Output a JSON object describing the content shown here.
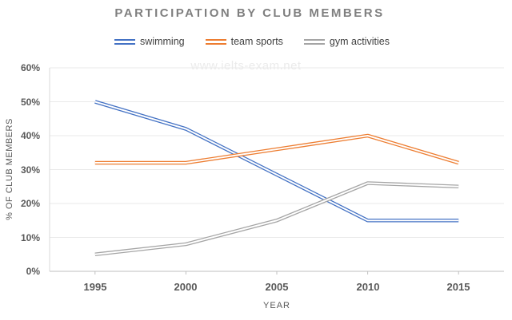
{
  "watermark": "www.ielts-exam.net",
  "colors": {
    "title_text": "#7f7f7f",
    "axis_text": "#595959",
    "legend_text": "#3f3f3f",
    "gridline": "#eaeaea",
    "axis_line": "#bfbfbf",
    "plot_left_edge": "#d9d9d9",
    "watermark_text": "#ebebeb"
  },
  "chart_data": {
    "type": "line",
    "title": "PARTICIPATION BY CLUB MEMBERS",
    "categories": [
      "1995",
      "2000",
      "2005",
      "2010",
      "2015"
    ],
    "series": [
      {
        "name": "swimming",
        "color": "#4472C4",
        "values": [
          50,
          42,
          28.5,
          15,
          15
        ]
      },
      {
        "name": "team sports",
        "color": "#ED7D31",
        "values": [
          32,
          32,
          36,
          40,
          32
        ]
      },
      {
        "name": "gym activities",
        "color": "#A5A5A5",
        "values": [
          5,
          8,
          15,
          26,
          25
        ]
      }
    ],
    "xlabel": "YEAR",
    "ylabel": "% OF CLUB MEMBERS",
    "ylim": [
      0,
      60
    ],
    "y_tick_step": 10,
    "y_tick_labels": [
      "0%",
      "10%",
      "20%",
      "30%",
      "40%",
      "50%",
      "60%"
    ],
    "grid": true,
    "legend_position": "top",
    "line_style": "double-line"
  }
}
